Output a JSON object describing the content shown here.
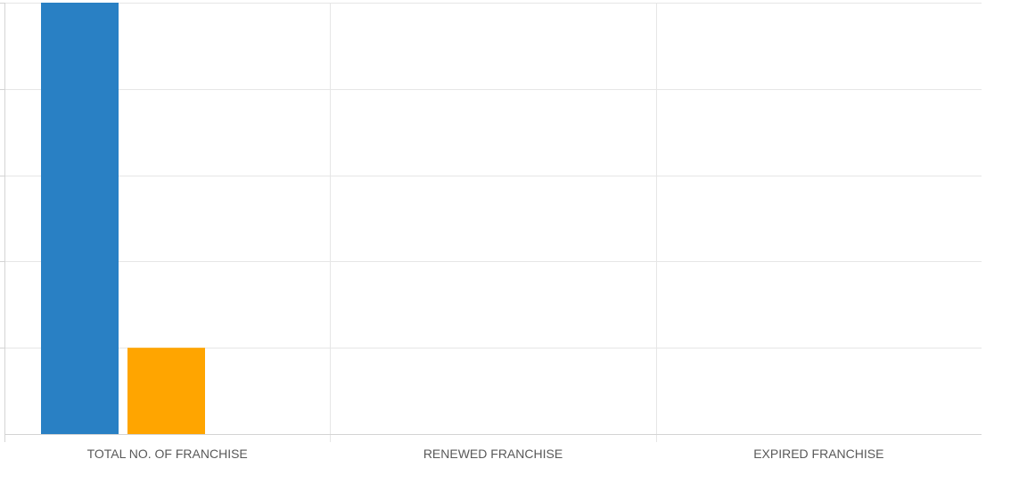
{
  "chart_data": {
    "type": "bar",
    "categories": [
      "TOTAL NO. OF FRANCHISE",
      "RENEWED FRANCHISE",
      "EXPIRED FRANCHISE"
    ],
    "series": [
      {
        "values": [
          5,
          0,
          0
        ],
        "color": "#2980c4"
      },
      {
        "values": [
          1,
          0,
          0
        ],
        "color": "#ffa500"
      }
    ],
    "ylim": [
      0,
      5
    ],
    "y_grid_steps": 5,
    "grid": true,
    "legend": "none",
    "colors": {
      "grid": "#e6e6e6",
      "axis": "#d4d4d4",
      "text": "#595959"
    }
  }
}
